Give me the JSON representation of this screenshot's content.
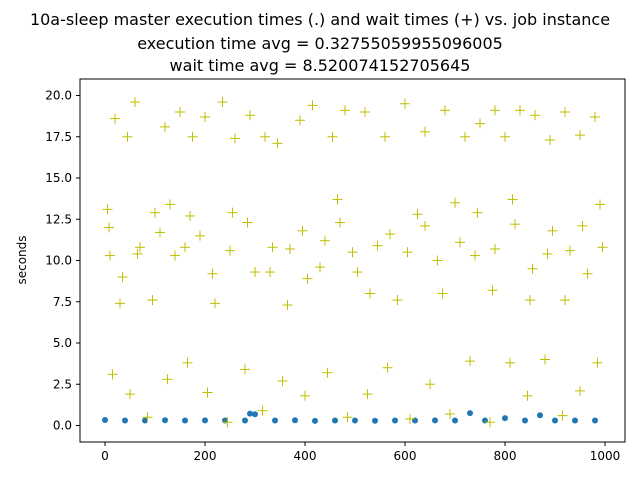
{
  "chart_data": {
    "type": "scatter",
    "title_lines": [
      "10a-sleep master execution times (.) and wait times (+) vs. job instance",
      "execution time avg = 0.32755059955096005",
      "wait time avg = 8.520074152705645"
    ],
    "xlabel": "",
    "ylabel": "seconds",
    "xlim": [
      -50,
      1040
    ],
    "ylim": [
      -1.0,
      21.0
    ],
    "x_ticks": [
      0,
      200,
      400,
      600,
      800,
      1000
    ],
    "y_ticks": [
      0.0,
      2.5,
      5.0,
      7.5,
      10.0,
      12.5,
      15.0,
      17.5,
      20.0
    ],
    "y_tick_labels": [
      "0.0",
      "2.5",
      "5.0",
      "7.5",
      "10.0",
      "12.5",
      "15.0",
      "17.5",
      "20.0"
    ],
    "series": [
      {
        "marker": "dot",
        "color": "#1f77b4",
        "x": [
          0,
          40,
          80,
          120,
          160,
          200,
          240,
          280,
          290,
          300,
          340,
          380,
          420,
          460,
          500,
          540,
          580,
          620,
          660,
          700,
          730,
          760,
          800,
          840,
          870,
          900,
          940,
          980
        ],
        "y": [
          0.33,
          0.3,
          0.3,
          0.32,
          0.3,
          0.31,
          0.3,
          0.3,
          0.72,
          0.68,
          0.3,
          0.32,
          0.28,
          0.3,
          0.3,
          0.29,
          0.3,
          0.3,
          0.31,
          0.3,
          0.75,
          0.3,
          0.45,
          0.3,
          0.62,
          0.3,
          0.3,
          0.3
        ]
      },
      {
        "marker": "plus",
        "color": "#bfbf00",
        "x": [
          5,
          20,
          45,
          60,
          100,
          120,
          150,
          175,
          200,
          235,
          260,
          290,
          320,
          345,
          390,
          415,
          455,
          480,
          520,
          560,
          600,
          640,
          680,
          720,
          750,
          780,
          800,
          830,
          860,
          890,
          920,
          950,
          980,
          10,
          35,
          70,
          110,
          140,
          170,
          215,
          250,
          285,
          330,
          370,
          405,
          440,
          470,
          505,
          545,
          585,
          625,
          665,
          700,
          740,
          775,
          815,
          855,
          895,
          930,
          965,
          995,
          8,
          30,
          65,
          95,
          130,
          160,
          190,
          220,
          255,
          300,
          335,
          365,
          395,
          430,
          465,
          495,
          530,
          570,
          605,
          640,
          675,
          710,
          745,
          780,
          820,
          850,
          885,
          920,
          955,
          990,
          15,
          50,
          85,
          125,
          165,
          205,
          245,
          280,
          315,
          355,
          400,
          445,
          485,
          525,
          565,
          610,
          650,
          690,
          730,
          770,
          810,
          845,
          880,
          915,
          950,
          985
        ],
        "y": [
          13.1,
          18.6,
          17.5,
          19.6,
          12.9,
          18.1,
          19.0,
          17.5,
          18.7,
          19.6,
          17.4,
          18.8,
          17.5,
          17.1,
          18.5,
          19.4,
          17.5,
          19.1,
          19.0,
          17.5,
          19.5,
          17.8,
          19.1,
          17.5,
          18.3,
          19.1,
          17.5,
          19.1,
          18.8,
          17.3,
          19.0,
          17.6,
          18.7,
          10.3,
          9.0,
          10.8,
          11.7,
          10.3,
          12.7,
          9.2,
          10.6,
          12.3,
          9.3,
          10.7,
          8.9,
          11.2,
          12.3,
          9.3,
          10.9,
          7.6,
          12.8,
          10.0,
          13.5,
          10.3,
          8.2,
          13.7,
          9.5,
          11.8,
          10.6,
          9.2,
          10.8,
          12.0,
          7.4,
          10.4,
          7.6,
          13.4,
          10.8,
          11.5,
          7.4,
          12.9,
          9.3,
          10.8,
          7.3,
          11.8,
          9.6,
          13.7,
          10.5,
          8.0,
          11.6,
          10.5,
          12.1,
          8.0,
          11.1,
          12.9,
          10.7,
          12.2,
          7.6,
          10.4,
          7.6,
          12.1,
          13.4,
          3.1,
          1.9,
          0.5,
          2.8,
          3.8,
          2.0,
          0.2,
          3.4,
          0.9,
          2.7,
          1.8,
          3.2,
          0.5,
          1.9,
          3.5,
          0.4,
          2.5,
          0.7,
          3.9,
          0.2,
          3.8,
          1.8,
          4.0,
          0.6,
          2.1,
          3.8
        ]
      }
    ]
  }
}
